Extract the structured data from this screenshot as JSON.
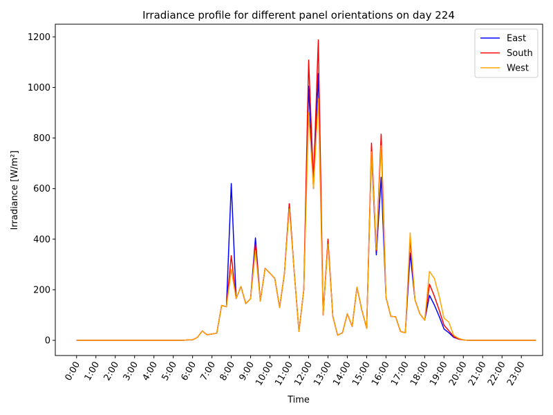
{
  "chart_data": {
    "type": "line",
    "title": "Irradiance profile for different panel orientations on day 224",
    "xlabel": "Time",
    "ylabel": "Irradiance [W/m²]",
    "xlim": [
      -1.1,
      24.1
    ],
    "ylim": [
      -60,
      1250
    ],
    "grid": false,
    "legend_position": "top-right",
    "x_ticks": [
      0,
      1,
      2,
      3,
      4,
      5,
      6,
      7,
      8,
      9,
      10,
      11,
      12,
      13,
      14,
      15,
      16,
      17,
      18,
      19,
      20,
      21,
      22,
      23
    ],
    "x_tick_labels": [
      "0:00",
      "1:00",
      "2:00",
      "3:00",
      "4:00",
      "5:00",
      "6:00",
      "7:00",
      "8:00",
      "9:00",
      "10:00",
      "11:00",
      "12:00",
      "13:00",
      "14:00",
      "15:00",
      "16:00",
      "17:00",
      "18:00",
      "19:00",
      "20:00",
      "21:00",
      "22:00",
      "23:00"
    ],
    "y_ticks": [
      0,
      200,
      400,
      600,
      800,
      1000,
      1200
    ],
    "y_tick_labels": [
      "0",
      "200",
      "400",
      "600",
      "800",
      "1000",
      "1200"
    ],
    "x": [
      0,
      0.25,
      0.5,
      0.75,
      1,
      1.25,
      1.5,
      1.75,
      2,
      2.25,
      2.5,
      2.75,
      3,
      3.25,
      3.5,
      3.75,
      4,
      4.25,
      4.5,
      4.75,
      5,
      5.25,
      5.5,
      5.75,
      6,
      6.25,
      6.5,
      6.75,
      7,
      7.25,
      7.5,
      7.75,
      8,
      8.25,
      8.5,
      8.75,
      9,
      9.25,
      9.5,
      9.75,
      10,
      10.25,
      10.5,
      10.75,
      11,
      11.25,
      11.5,
      11.75,
      12,
      12.25,
      12.5,
      12.75,
      13,
      13.25,
      13.5,
      13.75,
      14,
      14.25,
      14.5,
      14.75,
      15,
      15.25,
      15.5,
      15.75,
      16,
      16.25,
      16.5,
      16.75,
      17,
      17.25,
      17.5,
      17.75,
      18,
      18.25,
      18.5,
      18.75,
      19,
      19.25,
      19.5,
      19.75,
      20,
      20.25,
      20.5,
      20.75,
      21,
      21.25,
      21.5,
      21.75,
      22,
      22.25,
      22.5,
      22.75,
      23,
      23.25,
      23.5,
      23.75
    ],
    "series": [
      {
        "name": "East",
        "color": "#0000ff",
        "values": [
          0,
          0,
          0,
          0,
          0,
          0,
          0,
          0,
          0,
          0,
          0,
          0,
          0,
          0,
          0,
          0,
          0,
          0,
          0,
          0,
          0,
          0,
          0,
          2,
          2,
          12,
          37,
          22,
          25,
          28,
          138,
          133,
          620,
          165,
          213,
          145,
          165,
          405,
          155,
          285,
          265,
          245,
          130,
          265,
          540,
          275,
          35,
          200,
          1005,
          600,
          1055,
          100,
          390,
          95,
          20,
          30,
          105,
          55,
          210,
          120,
          48,
          740,
          338,
          645,
          170,
          95,
          93,
          35,
          30,
          345,
          160,
          105,
          80,
          178,
          140,
          95,
          45,
          30,
          12,
          5,
          2,
          0,
          0,
          0,
          0,
          0,
          0,
          0,
          0,
          0,
          0,
          0,
          0,
          0,
          0,
          0
        ]
      },
      {
        "name": "South",
        "color": "#ff0000",
        "values": [
          0,
          0,
          0,
          0,
          0,
          0,
          0,
          0,
          0,
          0,
          0,
          0,
          0,
          0,
          0,
          0,
          0,
          0,
          0,
          0,
          0,
          0,
          0,
          2,
          2,
          12,
          37,
          22,
          25,
          28,
          138,
          133,
          335,
          165,
          213,
          145,
          165,
          380,
          155,
          285,
          265,
          245,
          130,
          265,
          540,
          275,
          35,
          200,
          1108,
          630,
          1188,
          100,
          400,
          95,
          20,
          30,
          105,
          55,
          210,
          120,
          48,
          780,
          355,
          815,
          170,
          95,
          93,
          35,
          30,
          400,
          160,
          105,
          80,
          222,
          175,
          120,
          60,
          38,
          15,
          5,
          2,
          0,
          0,
          0,
          0,
          0,
          0,
          0,
          0,
          0,
          0,
          0,
          0,
          0,
          0,
          0
        ]
      },
      {
        "name": "West",
        "color": "#ffa500",
        "values": [
          0,
          0,
          0,
          0,
          0,
          0,
          0,
          0,
          0,
          0,
          0,
          0,
          0,
          0,
          0,
          0,
          0,
          0,
          0,
          0,
          0,
          0,
          0,
          2,
          2,
          12,
          37,
          22,
          25,
          28,
          138,
          133,
          280,
          165,
          213,
          145,
          165,
          355,
          155,
          285,
          265,
          245,
          130,
          265,
          520,
          275,
          35,
          200,
          900,
          600,
          955,
          100,
          380,
          95,
          20,
          30,
          105,
          55,
          210,
          120,
          48,
          745,
          360,
          770,
          170,
          95,
          93,
          35,
          30,
          425,
          160,
          105,
          80,
          273,
          245,
          175,
          88,
          72,
          20,
          8,
          2,
          0,
          0,
          0,
          0,
          0,
          0,
          0,
          0,
          0,
          0,
          0,
          0,
          0,
          0,
          0
        ]
      }
    ]
  }
}
